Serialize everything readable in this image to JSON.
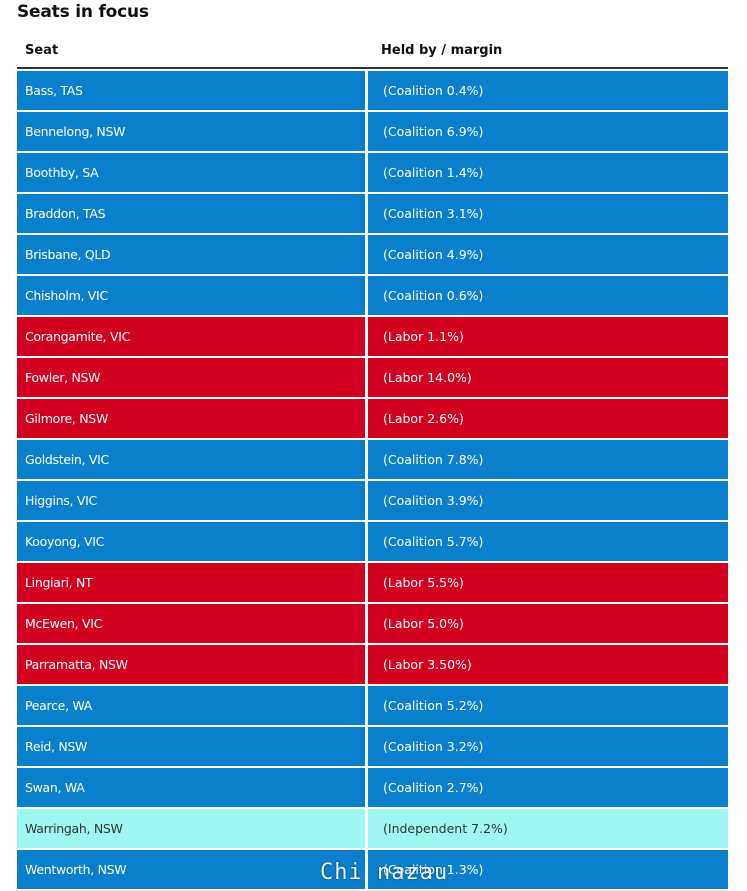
{
  "title": "Seats in focus",
  "table": {
    "headers": {
      "seat": "Seat",
      "held": "Held by / margin"
    },
    "rows": [
      {
        "seat": "Bass, TAS",
        "held": "(Coalition 0.4%)",
        "party": "coalition"
      },
      {
        "seat": "Bennelong, NSW",
        "held": "(Coalition 6.9%)",
        "party": "coalition"
      },
      {
        "seat": "Boothby, SA",
        "held": "(Coalition 1.4%)",
        "party": "coalition"
      },
      {
        "seat": "Braddon, TAS",
        "held": "(Coalition 3.1%)",
        "party": "coalition"
      },
      {
        "seat": "Brisbane, QLD",
        "held": "(Coalition 4.9%)",
        "party": "coalition"
      },
      {
        "seat": "Chisholm, VIC",
        "held": "(Coalition 0.6%)",
        "party": "coalition"
      },
      {
        "seat": "Corangamite, VIC",
        "held": "(Labor 1.1%)",
        "party": "labor"
      },
      {
        "seat": "Fowler, NSW",
        "held": "(Labor 14.0%)",
        "party": "labor"
      },
      {
        "seat": "Gilmore, NSW",
        "held": "(Labor 2.6%)",
        "party": "labor"
      },
      {
        "seat": "Goldstein, VIC",
        "held": "(Coalition 7.8%)",
        "party": "coalition"
      },
      {
        "seat": "Higgins, VIC",
        "held": "(Coalition 3.9%)",
        "party": "coalition"
      },
      {
        "seat": "Kooyong, VIC",
        "held": "(Coalition 5.7%)",
        "party": "coalition"
      },
      {
        "seat": "Lingiari, NT",
        "held": "(Labor 5.5%)",
        "party": "labor"
      },
      {
        "seat": "McEwen, VIC",
        "held": "(Labor 5.0%)",
        "party": "labor"
      },
      {
        "seat": "Parramatta, NSW",
        "held": "(Labor 3.50%)",
        "party": "labor"
      },
      {
        "seat": "Pearce, WA",
        "held": "(Coalition 5.2%)",
        "party": "coalition"
      },
      {
        "seat": "Reid, NSW",
        "held": "(Coalition 3.2%)",
        "party": "coalition"
      },
      {
        "seat": "Swan, WA",
        "held": "(Coalition 2.7%)",
        "party": "coalition"
      },
      {
        "seat": "Warringah, NSW",
        "held": "(Independent 7.2%)",
        "party": "independent"
      },
      {
        "seat": "Wentworth, NSW",
        "held": "(Coalition 1.3%)",
        "party": "coalition"
      }
    ]
  },
  "colors": {
    "coalition": "#0a80cc",
    "labor": "#d1001f",
    "independent": "#9ef8f1"
  },
  "watermark": "Chi nazau"
}
